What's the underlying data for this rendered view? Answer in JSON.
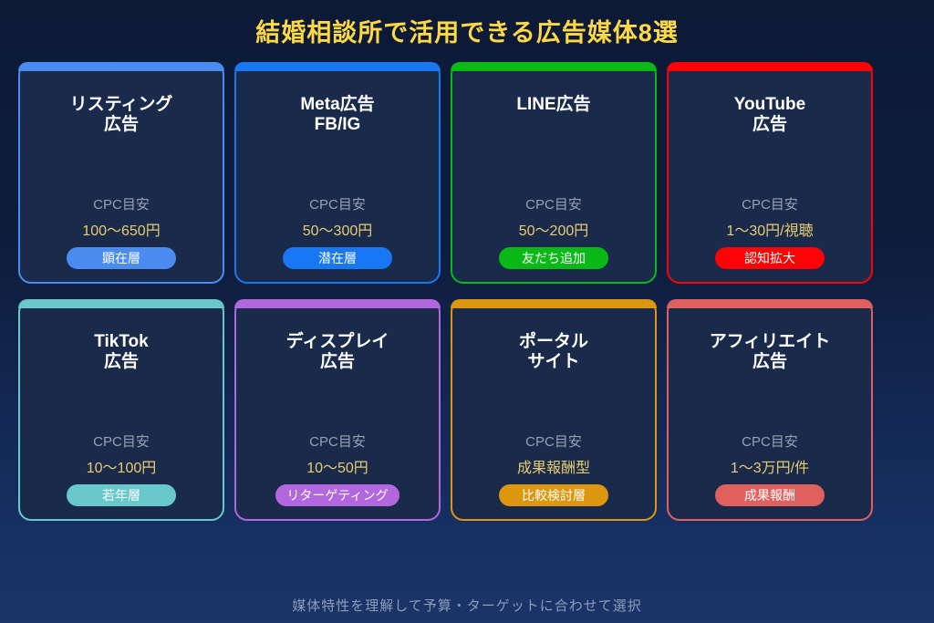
{
  "page": {
    "title": "結婚相談所で活用できる広告媒体8選",
    "footer": "媒体特性を理解して予算・ターゲットに合わせて選択"
  },
  "colors": {
    "background_top": "#0c1a36",
    "background_bottom": "#1b3568",
    "card_background": "#1a2a4b",
    "page_title": "#ffd845",
    "cpc_label": "#97a0b5",
    "cpc_value": "#e8cb72",
    "footer_text": "#8e9cba"
  },
  "cards": [
    {
      "title": "リスティング\n広告",
      "cpc_label": "CPC目安",
      "cpc_value": "100〜650円",
      "badge": "顕在層",
      "color": "#4a8cf2"
    },
    {
      "title": "Meta広告\nFB/IG",
      "cpc_label": "CPC目安",
      "cpc_value": "50〜300円",
      "badge": "潜在層",
      "color": "#1877f2"
    },
    {
      "title": "LINE広告",
      "cpc_label": "CPC目安",
      "cpc_value": "50〜200円",
      "badge": "友だち追加",
      "color": "#0ab816"
    },
    {
      "title": "YouTube\n広告",
      "cpc_label": "CPC目安",
      "cpc_value": "1〜30円/視聴",
      "badge": "認知拡大",
      "color": "#fc0204"
    },
    {
      "title": "TikTok\n広告",
      "cpc_label": "CPC目安",
      "cpc_value": "10〜100円",
      "badge": "若年層",
      "color": "#69c8cc"
    },
    {
      "title": "ディスプレイ\n広告",
      "cpc_label": "CPC目安",
      "cpc_value": "10〜50円",
      "badge": "リターゲティング",
      "color": "#b267df"
    },
    {
      "title": "ポータル\nサイト",
      "cpc_label": "CPC目安",
      "cpc_value": "成果報酬型",
      "badge": "比較検討層",
      "color": "#dd970f"
    },
    {
      "title": "アフィリエイト\n広告",
      "cpc_label": "CPC目安",
      "cpc_value": "1〜3万円/件",
      "badge": "成果報酬",
      "color": "#e06060"
    }
  ]
}
